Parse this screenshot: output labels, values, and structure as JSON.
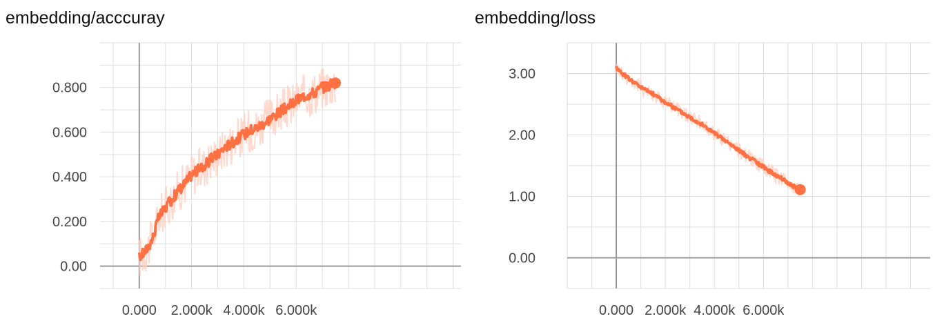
{
  "colors": {
    "line": "#ff7043",
    "raw": "#ffccbc",
    "grid": "#dddddd",
    "zero_axis": "#999999"
  },
  "chart_data": [
    {
      "type": "line",
      "title": "embedding/acccuray",
      "xlabel": "",
      "ylabel": "",
      "xlim": [
        -1500,
        12300
      ],
      "ylim": [
        -0.1,
        1.0
      ],
      "x_ticks": [
        0,
        2000,
        4000,
        6000
      ],
      "x_tick_labels": [
        "0.000",
        "2.000k",
        "4.000k",
        "6.000k"
      ],
      "y_ticks": [
        0,
        0.2,
        0.4,
        0.6,
        0.8
      ],
      "y_tick_labels": [
        "0.00",
        "0.200",
        "0.400",
        "0.600",
        "0.800"
      ],
      "grid": true,
      "legend": "none",
      "series": [
        {
          "x": [
            0,
            250,
            500,
            750,
            1000,
            1250,
            1500,
            1750,
            2000,
            2250,
            2500,
            2750,
            3000,
            3250,
            3500,
            3750,
            4000,
            4250,
            4500,
            4750,
            5000,
            5250,
            5500,
            5750,
            6000,
            6250,
            6500,
            6750,
            7000,
            7250,
            7500
          ],
          "y": [
            0.04,
            0.07,
            0.12,
            0.22,
            0.26,
            0.3,
            0.34,
            0.37,
            0.41,
            0.43,
            0.45,
            0.48,
            0.5,
            0.53,
            0.55,
            0.57,
            0.59,
            0.61,
            0.62,
            0.64,
            0.66,
            0.68,
            0.7,
            0.72,
            0.74,
            0.76,
            0.77,
            0.78,
            0.8,
            0.81,
            0.82
          ]
        }
      ]
    },
    {
      "type": "line",
      "title": "embedding/loss",
      "xlabel": "",
      "ylabel": "",
      "xlim": [
        -2000,
        12800
      ],
      "ylim": [
        -0.5,
        3.5
      ],
      "x_ticks": [
        0,
        2000,
        4000,
        6000
      ],
      "x_tick_labels": [
        "0.000",
        "2.000k",
        "4.000k",
        "6.000k"
      ],
      "y_ticks": [
        0,
        1,
        2,
        3
      ],
      "y_tick_labels": [
        "0.00",
        "1.00",
        "2.00",
        "3.00"
      ],
      "grid": true,
      "legend": "none",
      "series": [
        {
          "x": [
            0,
            250,
            500,
            750,
            1000,
            1250,
            1500,
            1750,
            2000,
            2250,
            2500,
            2750,
            3000,
            3250,
            3500,
            3750,
            4000,
            4250,
            4500,
            4750,
            5000,
            5250,
            5500,
            5750,
            6000,
            6250,
            6500,
            6750,
            7000,
            7250,
            7500
          ],
          "y": [
            3.1,
            3.0,
            2.92,
            2.85,
            2.78,
            2.72,
            2.67,
            2.6,
            2.53,
            2.47,
            2.41,
            2.35,
            2.29,
            2.23,
            2.17,
            2.1,
            2.03,
            1.96,
            1.89,
            1.82,
            1.75,
            1.68,
            1.61,
            1.54,
            1.48,
            1.41,
            1.35,
            1.29,
            1.22,
            1.16,
            1.11
          ]
        }
      ]
    }
  ]
}
